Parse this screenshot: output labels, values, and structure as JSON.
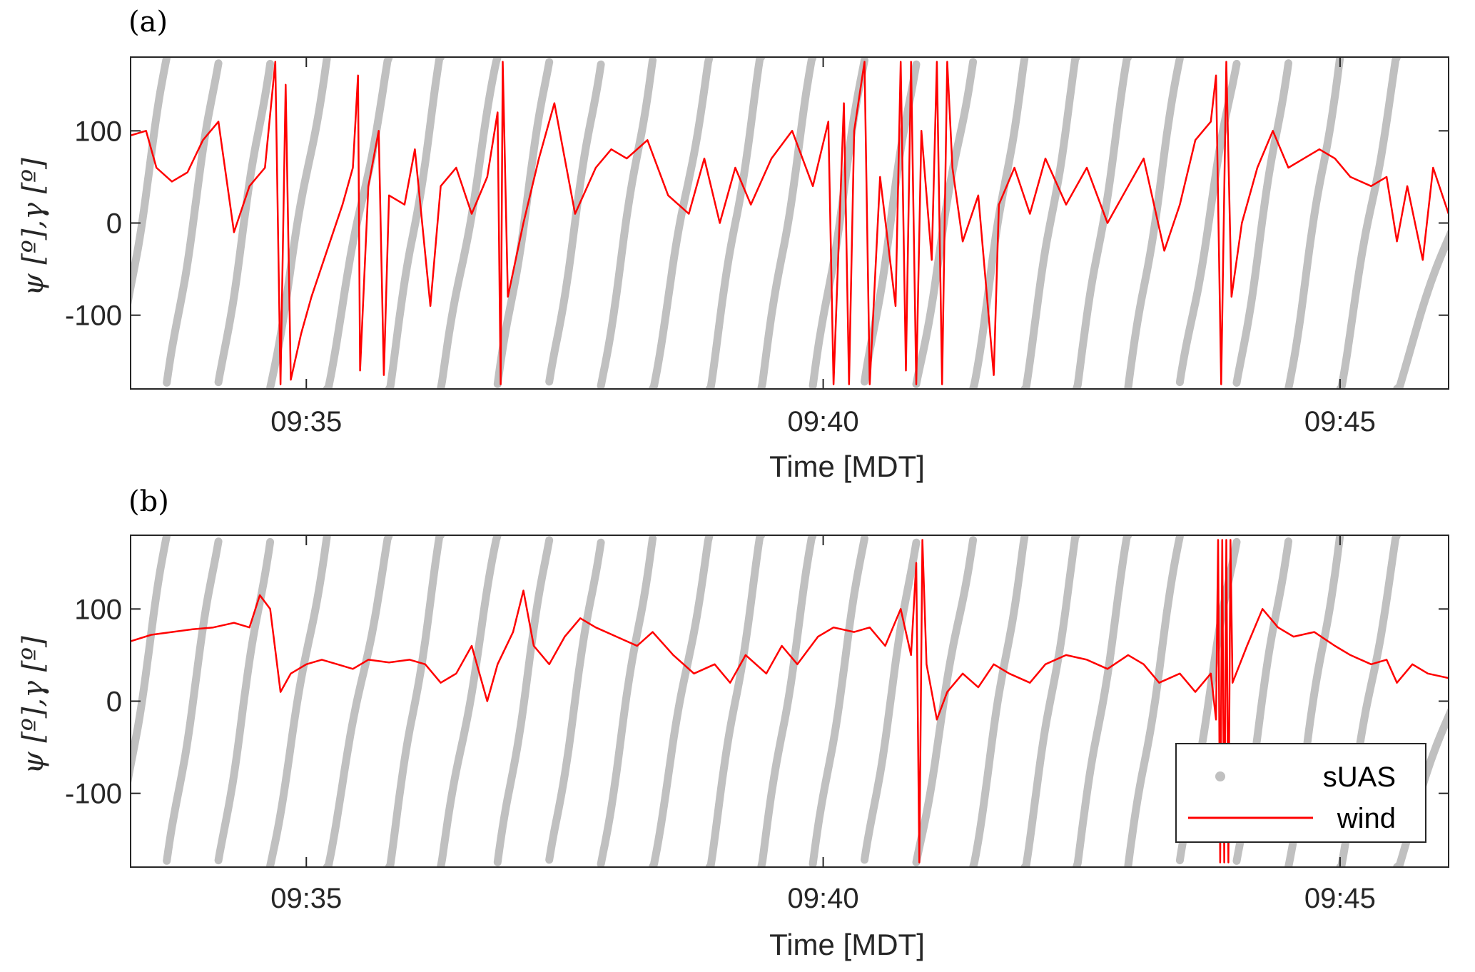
{
  "colors": {
    "suas": "#c0c0c0",
    "wind": "#ff0000",
    "axis": "#262626"
  },
  "legend": {
    "placement": "bottom-right",
    "entries": [
      "sUAS",
      "wind"
    ]
  },
  "chart_data": [
    {
      "type": "line",
      "panel_label": "(a)",
      "xlabel": "Time [MDT]",
      "ylabel": "ψ [º],γ [º]",
      "xlim_min": [
        33.3,
        46.05
      ],
      "ylim": [
        -180,
        180
      ],
      "yticks": [
        -100,
        0,
        100
      ],
      "yticklabels": [
        "-100",
        "0",
        "100"
      ],
      "xticks_min": [
        35,
        40,
        45
      ],
      "xticklabels": [
        "09:35",
        "09:40",
        "09:45"
      ],
      "series": [
        {
          "name": "sUAS",
          "style": "dots",
          "wrap_times_min": [
            33.65,
            34.15,
            34.65,
            35.2,
            35.8,
            36.3,
            36.85,
            37.35,
            37.85,
            38.35,
            38.9,
            39.4,
            39.9,
            40.4,
            40.9,
            41.45,
            41.95,
            42.45,
            42.95,
            43.45,
            44.0,
            44.5,
            45.0,
            45.55
          ],
          "tail": [
            [
              45.85,
              100
            ],
            [
              46.05,
              120
            ]
          ]
        },
        {
          "name": "wind",
          "style": "line",
          "points": [
            [
              33.3,
              95
            ],
            [
              33.45,
              100
            ],
            [
              33.55,
              60
            ],
            [
              33.7,
              45
            ],
            [
              33.85,
              55
            ],
            [
              34.0,
              90
            ],
            [
              34.15,
              110
            ],
            [
              34.3,
              -10
            ],
            [
              34.45,
              40
            ],
            [
              34.6,
              60
            ],
            [
              34.7,
              175
            ],
            [
              34.75,
              -175
            ],
            [
              34.8,
              150
            ],
            [
              34.85,
              -170
            ],
            [
              34.95,
              -120
            ],
            [
              35.05,
              -80
            ],
            [
              35.2,
              -30
            ],
            [
              35.35,
              20
            ],
            [
              35.45,
              60
            ],
            [
              35.5,
              160
            ],
            [
              35.52,
              -160
            ],
            [
              35.6,
              40
            ],
            [
              35.7,
              100
            ],
            [
              35.75,
              -165
            ],
            [
              35.8,
              30
            ],
            [
              35.95,
              20
            ],
            [
              36.05,
              80
            ],
            [
              36.2,
              -90
            ],
            [
              36.3,
              40
            ],
            [
              36.45,
              60
            ],
            [
              36.6,
              10
            ],
            [
              36.75,
              50
            ],
            [
              36.85,
              120
            ],
            [
              36.88,
              -175
            ],
            [
              36.9,
              175
            ],
            [
              36.95,
              -80
            ],
            [
              37.1,
              0
            ],
            [
              37.25,
              70
            ],
            [
              37.4,
              130
            ],
            [
              37.6,
              10
            ],
            [
              37.8,
              60
            ],
            [
              37.95,
              80
            ],
            [
              38.1,
              70
            ],
            [
              38.3,
              90
            ],
            [
              38.5,
              30
            ],
            [
              38.7,
              10
            ],
            [
              38.85,
              70
            ],
            [
              39.0,
              0
            ],
            [
              39.15,
              60
            ],
            [
              39.3,
              20
            ],
            [
              39.5,
              70
            ],
            [
              39.7,
              100
            ],
            [
              39.9,
              40
            ],
            [
              40.05,
              110
            ],
            [
              40.1,
              -175
            ],
            [
              40.2,
              130
            ],
            [
              40.25,
              -175
            ],
            [
              40.3,
              100
            ],
            [
              40.4,
              175
            ],
            [
              40.45,
              -175
            ],
            [
              40.55,
              50
            ],
            [
              40.7,
              -90
            ],
            [
              40.75,
              175
            ],
            [
              40.8,
              -160
            ],
            [
              40.85,
              175
            ],
            [
              40.9,
              -175
            ],
            [
              40.95,
              100
            ],
            [
              41.05,
              -40
            ],
            [
              41.1,
              175
            ],
            [
              41.15,
              -175
            ],
            [
              41.2,
              175
            ],
            [
              41.25,
              60
            ],
            [
              41.35,
              -20
            ],
            [
              41.5,
              30
            ],
            [
              41.65,
              -165
            ],
            [
              41.7,
              20
            ],
            [
              41.85,
              60
            ],
            [
              42.0,
              10
            ],
            [
              42.15,
              70
            ],
            [
              42.35,
              20
            ],
            [
              42.55,
              60
            ],
            [
              42.75,
              0
            ],
            [
              42.95,
              40
            ],
            [
              43.1,
              70
            ],
            [
              43.3,
              -30
            ],
            [
              43.45,
              20
            ],
            [
              43.6,
              90
            ],
            [
              43.75,
              110
            ],
            [
              43.8,
              160
            ],
            [
              43.85,
              -175
            ],
            [
              43.9,
              175
            ],
            [
              43.95,
              -80
            ],
            [
              44.05,
              0
            ],
            [
              44.2,
              60
            ],
            [
              44.35,
              100
            ],
            [
              44.5,
              60
            ],
            [
              44.65,
              70
            ],
            [
              44.8,
              80
            ],
            [
              44.95,
              70
            ],
            [
              45.1,
              50
            ],
            [
              45.3,
              40
            ],
            [
              45.45,
              50
            ],
            [
              45.55,
              -20
            ],
            [
              45.65,
              40
            ],
            [
              45.8,
              -40
            ],
            [
              45.9,
              60
            ],
            [
              46.05,
              10
            ]
          ]
        }
      ]
    },
    {
      "type": "line",
      "panel_label": "(b)",
      "xlabel": "Time [MDT]",
      "ylabel": "ψ [º],γ [º]",
      "xlim_min": [
        33.3,
        46.05
      ],
      "ylim": [
        -180,
        180
      ],
      "yticks": [
        -100,
        0,
        100
      ],
      "yticklabels": [
        "-100",
        "0",
        "100"
      ],
      "xticks_min": [
        35,
        40,
        45
      ],
      "xticklabels": [
        "09:35",
        "09:40",
        "09:45"
      ],
      "series": [
        {
          "name": "sUAS",
          "style": "dots",
          "wrap_times_min": [
            33.65,
            34.15,
            34.65,
            35.2,
            35.8,
            36.3,
            36.85,
            37.35,
            37.85,
            38.35,
            38.9,
            39.4,
            39.9,
            40.4,
            40.9,
            41.45,
            41.95,
            42.45,
            42.95,
            43.45,
            44.0,
            44.5,
            45.0,
            45.55
          ],
          "tail": [
            [
              45.85,
              100
            ],
            [
              46.05,
              120
            ]
          ]
        },
        {
          "name": "wind",
          "style": "line",
          "points": [
            [
              33.3,
              65
            ],
            [
              33.5,
              72
            ],
            [
              33.7,
              75
            ],
            [
              33.9,
              78
            ],
            [
              34.1,
              80
            ],
            [
              34.3,
              85
            ],
            [
              34.45,
              80
            ],
            [
              34.55,
              115
            ],
            [
              34.65,
              100
            ],
            [
              34.75,
              10
            ],
            [
              34.85,
              30
            ],
            [
              35.0,
              40
            ],
            [
              35.15,
              45
            ],
            [
              35.3,
              40
            ],
            [
              35.45,
              35
            ],
            [
              35.6,
              45
            ],
            [
              35.8,
              42
            ],
            [
              36.0,
              45
            ],
            [
              36.15,
              40
            ],
            [
              36.3,
              20
            ],
            [
              36.45,
              30
            ],
            [
              36.6,
              60
            ],
            [
              36.75,
              0
            ],
            [
              36.85,
              40
            ],
            [
              37.0,
              75
            ],
            [
              37.1,
              120
            ],
            [
              37.2,
              60
            ],
            [
              37.35,
              40
            ],
            [
              37.5,
              70
            ],
            [
              37.65,
              90
            ],
            [
              37.8,
              80
            ],
            [
              38.0,
              70
            ],
            [
              38.2,
              60
            ],
            [
              38.35,
              75
            ],
            [
              38.55,
              50
            ],
            [
              38.75,
              30
            ],
            [
              38.95,
              40
            ],
            [
              39.1,
              20
            ],
            [
              39.25,
              50
            ],
            [
              39.45,
              30
            ],
            [
              39.6,
              60
            ],
            [
              39.75,
              40
            ],
            [
              39.95,
              70
            ],
            [
              40.1,
              80
            ],
            [
              40.3,
              75
            ],
            [
              40.45,
              80
            ],
            [
              40.6,
              60
            ],
            [
              40.75,
              100
            ],
            [
              40.85,
              50
            ],
            [
              40.9,
              150
            ],
            [
              40.93,
              -175
            ],
            [
              40.96,
              175
            ],
            [
              41.0,
              40
            ],
            [
              41.1,
              -20
            ],
            [
              41.2,
              10
            ],
            [
              41.35,
              30
            ],
            [
              41.5,
              15
            ],
            [
              41.65,
              40
            ],
            [
              41.8,
              30
            ],
            [
              42.0,
              20
            ],
            [
              42.15,
              40
            ],
            [
              42.35,
              50
            ],
            [
              42.55,
              45
            ],
            [
              42.75,
              35
            ],
            [
              42.95,
              50
            ],
            [
              43.1,
              40
            ],
            [
              43.25,
              20
            ],
            [
              43.45,
              30
            ],
            [
              43.6,
              10
            ],
            [
              43.75,
              30
            ],
            [
              43.8,
              -20
            ],
            [
              43.82,
              175
            ],
            [
              43.84,
              -175
            ],
            [
              43.86,
              175
            ],
            [
              43.88,
              -175
            ],
            [
              43.9,
              175
            ],
            [
              43.92,
              -175
            ],
            [
              43.94,
              175
            ],
            [
              43.96,
              20
            ],
            [
              44.1,
              60
            ],
            [
              44.25,
              100
            ],
            [
              44.4,
              80
            ],
            [
              44.55,
              70
            ],
            [
              44.75,
              75
            ],
            [
              44.95,
              60
            ],
            [
              45.1,
              50
            ],
            [
              45.3,
              40
            ],
            [
              45.45,
              45
            ],
            [
              45.55,
              20
            ],
            [
              45.7,
              40
            ],
            [
              45.85,
              30
            ],
            [
              46.05,
              25
            ]
          ]
        }
      ]
    }
  ]
}
